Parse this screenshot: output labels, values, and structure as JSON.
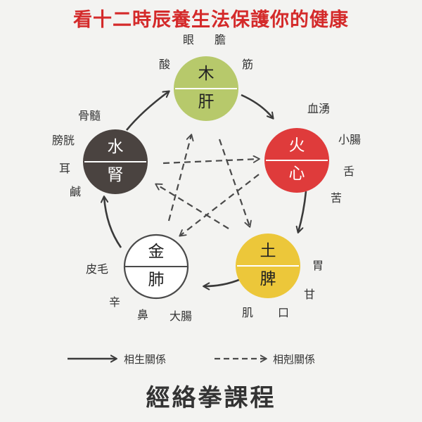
{
  "title": "看十二時辰養生法保護你的健康",
  "course": "經絡拳課程",
  "colors": {
    "title": "#d42a2a",
    "wood": "#b7c96b",
    "fire": "#df3b3b",
    "earth": "#ecc73a",
    "metal": "#ffffff",
    "water": "#4a4340",
    "arrow": "#3a3a3a"
  },
  "elements": {
    "wood": {
      "element": "木",
      "organ": "肝",
      "attributes": [
        "眼",
        "膽",
        "酸",
        "筋"
      ]
    },
    "fire": {
      "element": "火",
      "organ": "心",
      "attributes": [
        "血湧",
        "小腸",
        "舌",
        "苦"
      ]
    },
    "earth": {
      "element": "土",
      "organ": "脾",
      "attributes": [
        "胃",
        "甘",
        "肌",
        "口"
      ]
    },
    "metal": {
      "element": "金",
      "organ": "肺",
      "attributes": [
        "皮毛",
        "辛",
        "鼻",
        "大腸"
      ]
    },
    "water": {
      "element": "水",
      "organ": "腎",
      "attributes": [
        "骨髓",
        "膀胱",
        "耳",
        "鹹"
      ]
    }
  },
  "legend": {
    "generating": "相生關係",
    "controlling": "相剋關係"
  }
}
